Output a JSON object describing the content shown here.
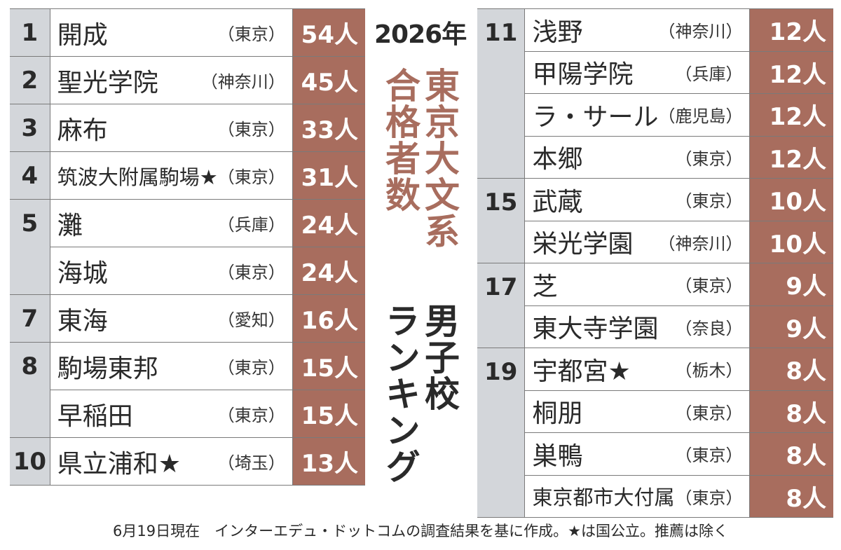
{
  "title": {
    "year": "2026年",
    "main": "東京大文系",
    "sub": "合格者数",
    "boys": "男子校",
    "ranking": "ランキング"
  },
  "left": [
    {
      "rank": "1",
      "entries": [
        {
          "name": "開成",
          "pref": "（東京）",
          "count": "54人"
        }
      ]
    },
    {
      "rank": "2",
      "entries": [
        {
          "name": "聖光学院",
          "pref": "（神奈川）",
          "count": "45人"
        }
      ]
    },
    {
      "rank": "3",
      "entries": [
        {
          "name": "麻布",
          "pref": "（東京）",
          "count": "33人"
        }
      ]
    },
    {
      "rank": "4",
      "entries": [
        {
          "name": "筑波大附属駒場★",
          "pref": "（東京）",
          "count": "31人"
        }
      ]
    },
    {
      "rank": "5",
      "entries": [
        {
          "name": "灘",
          "pref": "（兵庫）",
          "count": "24人"
        },
        {
          "name": "海城",
          "pref": "（東京）",
          "count": "24人"
        }
      ]
    },
    {
      "rank": "7",
      "entries": [
        {
          "name": "東海",
          "pref": "（愛知）",
          "count": "16人"
        }
      ]
    },
    {
      "rank": "8",
      "entries": [
        {
          "name": "駒場東邦",
          "pref": "（東京）",
          "count": "15人"
        },
        {
          "name": "早稲田",
          "pref": "（東京）",
          "count": "15人"
        }
      ]
    },
    {
      "rank": "10",
      "entries": [
        {
          "name": "県立浦和★",
          "pref": "（埼玉）",
          "count": "13人"
        }
      ]
    }
  ],
  "right": [
    {
      "rank": "11",
      "entries": [
        {
          "name": "浅野",
          "pref": "（神奈川）",
          "count": "12人"
        },
        {
          "name": "甲陽学院",
          "pref": "（兵庫）",
          "count": "12人"
        },
        {
          "name": "ラ・サール",
          "pref": "（鹿児島）",
          "count": "12人"
        },
        {
          "name": "本郷",
          "pref": "（東京）",
          "count": "12人"
        }
      ]
    },
    {
      "rank": "15",
      "entries": [
        {
          "name": "武蔵",
          "pref": "（東京）",
          "count": "10人"
        },
        {
          "name": "栄光学園",
          "pref": "（神奈川）",
          "count": "10人"
        }
      ]
    },
    {
      "rank": "17",
      "entries": [
        {
          "name": "芝",
          "pref": "（東京）",
          "count": "9人"
        },
        {
          "name": "東大寺学園",
          "pref": "（奈良）",
          "count": "9人"
        }
      ]
    },
    {
      "rank": "19",
      "entries": [
        {
          "name": "宇都宮★",
          "pref": "（栃木）",
          "count": "8人"
        },
        {
          "name": "桐朋",
          "pref": "（東京）",
          "count": "8人"
        },
        {
          "name": "巣鴨",
          "pref": "（東京）",
          "count": "8人"
        },
        {
          "name": "東京都市大付属",
          "pref": "（東京）",
          "count": "8人"
        }
      ]
    }
  ],
  "footnote": "6月19日現在　インターエデュ・ドットコムの調査結果を基に作成。★は国公立。推薦は除く",
  "colors": {
    "accent": "#a86d5e",
    "rank_bg": "#d3d6da",
    "text": "#2a2a2a"
  }
}
